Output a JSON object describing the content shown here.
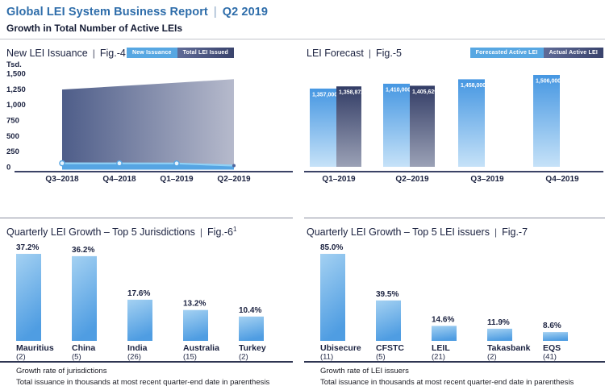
{
  "ui": {
    "pipe": "|"
  },
  "header": {
    "title": "Global LEI System Business Report",
    "period": "Q2 2019",
    "subtitle": "Growth in Total Number of Active LEIs"
  },
  "colors": {
    "accent_blue": "#2e6daa",
    "navy": "#1b2240",
    "axis": "#3b4366",
    "chip_light": "#57a7e2",
    "chip_dark_left": "#5f6b97",
    "chip_dark_right": "#39436c",
    "forecast_bar_top": "#4697e2",
    "forecast_bar_bottom": "#c6e2f8",
    "actual_bar_top": "#333d66",
    "actual_bar_bottom": "#9ba1b6",
    "growth_bar_top": "#a4d1f2",
    "growth_bar_bottom": "#4f9de2",
    "area_left": "#4e5d89",
    "area_right": "#b6bacc",
    "issuance_fill": "#56a5e3",
    "issuance_line": "#90d1f6"
  },
  "chart_data": [
    {
      "id": "fig4",
      "type": "area",
      "title": "New LEI Issuance",
      "fig_label": "Fig.-4",
      "unit_label": "Tsd.",
      "legend": [
        {
          "label": "New Issuance"
        },
        {
          "label": "Total LEI Issued"
        }
      ],
      "legend_position": "top-right",
      "grid": false,
      "categories": [
        "Q3–2018",
        "Q4–2018",
        "Q1–2019",
        "Q2–2019"
      ],
      "series": [
        {
          "name": "New Issuance",
          "values": [
            57,
            55,
            54,
            20
          ]
        },
        {
          "name": "Total LEI Issued",
          "values": [
            1240,
            1295,
            1350,
            1405
          ]
        }
      ],
      "ylim": [
        0,
        1500
      ],
      "yticks": [
        "1,500",
        "1,250",
        "1,000",
        "750",
        "500",
        "250",
        "0"
      ]
    },
    {
      "id": "fig5",
      "type": "bar",
      "title": "LEI Forecast",
      "fig_label": "Fig.-5",
      "legend": [
        {
          "label": "Forecasted Active LEI"
        },
        {
          "label": "Actual Active LEI"
        }
      ],
      "legend_position": "top-right",
      "categories": [
        "Q1–2019",
        "Q2–2019",
        "Q3–2019",
        "Q4–2019"
      ],
      "series": [
        {
          "name": "Forecasted Active LEI",
          "values": [
            1357000,
            1410000,
            1458000,
            1506000
          ],
          "labels": [
            "1,357,000",
            "1,410,000",
            "1,458,000",
            "1,506,000"
          ]
        },
        {
          "name": "Actual Active LEI",
          "values": [
            1358872,
            1405629,
            null,
            null
          ],
          "labels": [
            "1,358,872",
            "1,405,629",
            null,
            null
          ]
        }
      ]
    },
    {
      "id": "fig6",
      "type": "bar",
      "title": "Quarterly LEI Growth – Top 5 Jurisdictions",
      "fig_label": "Fig.-6",
      "fig_superscript": "1",
      "categories": [
        "Mauritius",
        "China",
        "India",
        "Australia",
        "Turkey"
      ],
      "counts": [
        "(2)",
        "(5)",
        "(26)",
        "(15)",
        "(2)"
      ],
      "values": [
        37.2,
        36.2,
        17.6,
        13.2,
        10.4
      ],
      "value_labels": [
        "37.2%",
        "36.2%",
        "17.6%",
        "13.2%",
        "10.4%"
      ],
      "footnotes": [
        "Growth rate of jurisdictions",
        "Total issuance in thousands at most recent quarter-end date in parenthesis"
      ]
    },
    {
      "id": "fig7",
      "type": "bar",
      "title": "Quarterly LEI Growth – Top 5 LEI issuers",
      "fig_label": "Fig.-7",
      "categories": [
        "Ubisecure",
        "CFSTC",
        "LEIL",
        "Takasbank",
        "EQS"
      ],
      "counts": [
        "(11)",
        "(5)",
        "(21)",
        "(2)",
        "(41)"
      ],
      "values": [
        85.0,
        39.5,
        14.6,
        11.9,
        8.6
      ],
      "value_labels": [
        "85.0%",
        "39.5%",
        "14.6%",
        "11.9%",
        "8.6%"
      ],
      "footnotes": [
        "Growth rate of LEI issuers",
        "Total issuance in thousands at most recent quarter-end date in parenthesis"
      ]
    }
  ]
}
